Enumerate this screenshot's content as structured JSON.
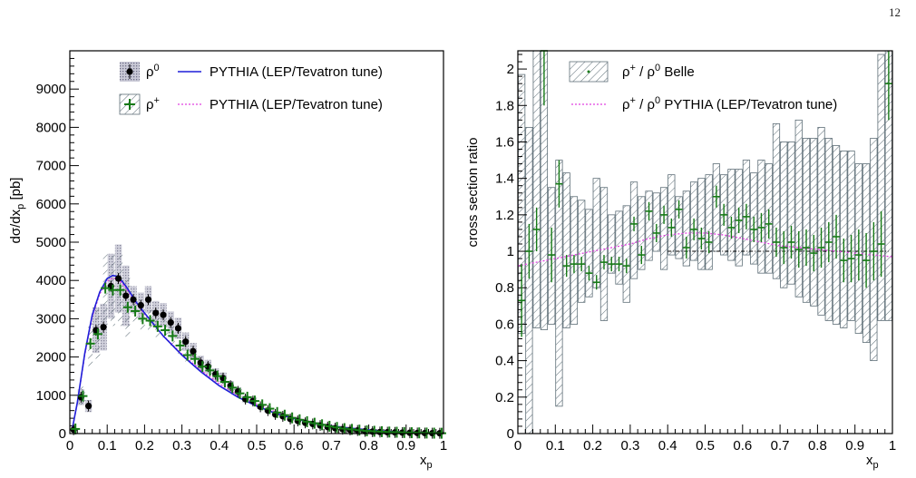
{
  "page": {
    "number": "12"
  },
  "colors": {
    "pythia_rho0": "#1f1fd8",
    "pythia_rhoplus": "#e040e0",
    "rhoplus": "#167a16",
    "rho0": "#000000",
    "band": "#8a8aa0",
    "hatch": "#5f6f78"
  },
  "chart_data": [
    {
      "type": "scatter",
      "title": "",
      "xlabel": "x",
      "xlabel_sub": "p",
      "ylabel": "dσ/dx",
      "ylabel_sub": "p",
      "ylabel_unit": " [pb]",
      "xlim": [
        0,
        1
      ],
      "ylim": [
        0,
        10000
      ],
      "xticks": [
        0,
        0.1,
        0.2,
        0.3,
        0.4,
        0.5,
        0.6,
        0.7,
        0.8,
        0.9,
        1
      ],
      "xtick_labels": [
        "0",
        "0.1",
        "0.2",
        "0.3",
        "0.4",
        "0.5",
        "0.6",
        "0.7",
        "0.8",
        "0.9",
        "1"
      ],
      "yticks": [
        0,
        1000,
        2000,
        3000,
        4000,
        5000,
        6000,
        7000,
        8000,
        9000
      ],
      "ytick_labels": [
        "0",
        "1000",
        "2000",
        "3000",
        "4000",
        "5000",
        "6000",
        "7000",
        "8000",
        "9000"
      ],
      "legend_position": "top",
      "legend": [
        {
          "key": "rho0_data",
          "label": "ρ",
          "sup": "0"
        },
        {
          "key": "rho0_pythia",
          "label": "PYTHIA (LEP/Tevatron tune)"
        },
        {
          "key": "rhoplus_data",
          "label": "ρ",
          "sup": "+"
        },
        {
          "key": "rhoplus_pythia",
          "label": "PYTHIA (LEP/Tevatron tune)"
        }
      ],
      "series": [
        {
          "key": "rho0_data",
          "x": [
            0.01,
            0.03,
            0.05,
            0.07,
            0.09,
            0.11,
            0.13,
            0.15,
            0.17,
            0.19,
            0.21,
            0.23,
            0.25,
            0.27,
            0.29,
            0.31,
            0.33,
            0.35,
            0.37,
            0.39,
            0.41,
            0.43,
            0.45,
            0.47,
            0.49,
            0.51,
            0.53,
            0.55,
            0.57,
            0.59,
            0.61,
            0.63,
            0.65,
            0.67,
            0.69,
            0.71,
            0.73,
            0.75,
            0.77,
            0.79,
            0.81,
            0.83,
            0.85,
            0.87,
            0.89,
            0.91,
            0.93,
            0.95,
            0.97,
            0.99
          ],
          "y": [
            100,
            950,
            720,
            2700,
            2780,
            3850,
            4050,
            3600,
            3500,
            3350,
            3500,
            3150,
            3100,
            2900,
            2750,
            2400,
            2150,
            1850,
            1750,
            1550,
            1450,
            1250,
            1100,
            900,
            850,
            700,
            600,
            500,
            450,
            380,
            330,
            280,
            250,
            210,
            170,
            140,
            115,
            95,
            80,
            60,
            50,
            40,
            35,
            30,
            25,
            20,
            15,
            12,
            10,
            8
          ]
        },
        {
          "key": "rhoplus_data",
          "x": [
            0.015,
            0.035,
            0.055,
            0.075,
            0.095,
            0.115,
            0.135,
            0.155,
            0.175,
            0.195,
            0.215,
            0.235,
            0.255,
            0.275,
            0.295,
            0.315,
            0.335,
            0.355,
            0.375,
            0.395,
            0.415,
            0.435,
            0.455,
            0.475,
            0.495,
            0.515,
            0.535,
            0.555,
            0.575,
            0.595,
            0.615,
            0.635,
            0.655,
            0.675,
            0.695,
            0.715,
            0.735,
            0.755,
            0.775,
            0.795,
            0.815,
            0.835,
            0.855,
            0.875,
            0.895,
            0.915,
            0.935,
            0.955,
            0.975,
            0.995
          ],
          "y": [
            120,
            980,
            2350,
            2600,
            3800,
            3750,
            3750,
            3300,
            3200,
            3000,
            2950,
            2800,
            2700,
            2550,
            2300,
            2050,
            1950,
            1750,
            1650,
            1500,
            1350,
            1200,
            1050,
            950,
            850,
            750,
            650,
            550,
            480,
            410,
            360,
            310,
            270,
            230,
            190,
            160,
            130,
            110,
            90,
            70,
            60,
            50,
            40,
            35,
            28,
            22,
            18,
            14,
            11,
            9
          ]
        },
        {
          "key": "rho0_pythia",
          "x": [
            0.005,
            0.02,
            0.04,
            0.06,
            0.08,
            0.1,
            0.115,
            0.13,
            0.15,
            0.18,
            0.2,
            0.25,
            0.3,
            0.35,
            0.4,
            0.45,
            0.5,
            0.55,
            0.6,
            0.65,
            0.7,
            0.75,
            0.8,
            0.85,
            0.9,
            0.95,
            0.99
          ],
          "y": [
            50,
            800,
            2100,
            3100,
            3700,
            4050,
            4130,
            4100,
            3850,
            3400,
            3150,
            2550,
            2050,
            1620,
            1250,
            950,
            720,
            530,
            390,
            280,
            200,
            140,
            95,
            60,
            35,
            20,
            10
          ]
        },
        {
          "key": "rhoplus_pythia",
          "x": [
            0.005,
            0.02,
            0.04,
            0.06,
            0.08,
            0.1,
            0.115,
            0.13,
            0.15,
            0.18,
            0.2,
            0.25,
            0.3,
            0.35,
            0.4,
            0.45,
            0.5,
            0.55,
            0.6,
            0.65,
            0.7,
            0.75,
            0.8,
            0.85,
            0.9,
            0.95,
            0.99
          ],
          "y": [
            45,
            780,
            2050,
            3050,
            3650,
            3980,
            4060,
            4030,
            3800,
            3380,
            3120,
            2560,
            2080,
            1660,
            1300,
            1000,
            760,
            570,
            420,
            300,
            215,
            150,
            100,
            65,
            38,
            22,
            11
          ]
        }
      ]
    },
    {
      "type": "scatter",
      "title": "",
      "xlabel": "x",
      "xlabel_sub": "p",
      "ylabel": "cross section ratio",
      "xlim": [
        0,
        1
      ],
      "ylim": [
        0,
        2.1
      ],
      "xticks": [
        0,
        0.1,
        0.2,
        0.3,
        0.4,
        0.5,
        0.6,
        0.7,
        0.8,
        0.9,
        1
      ],
      "xtick_labels": [
        "0",
        "0.1",
        "0.2",
        "0.3",
        "0.4",
        "0.5",
        "0.6",
        "0.7",
        "0.8",
        "0.9",
        "1"
      ],
      "yticks": [
        0,
        0.2,
        0.4,
        0.6,
        0.8,
        1,
        1.2,
        1.4,
        1.6,
        1.8,
        2
      ],
      "ytick_labels": [
        "0",
        "0.2",
        "0.4",
        "0.6",
        "0.8",
        "1",
        "1.2",
        "1.4",
        "1.6",
        "1.8",
        "2"
      ],
      "reference_line": 1,
      "legend_position": "top",
      "legend": [
        {
          "key": "ratio_data",
          "label": "ρ",
          "sup": "+",
          "label2": " / ρ",
          "sup2": "0",
          "label3": " Belle"
        },
        {
          "key": "ratio_pythia",
          "label": "ρ",
          "sup": "+",
          "label2": " / ρ",
          "sup2": "0",
          "label3": " PYTHIA (LEP/Tevatron tune)"
        }
      ],
      "series": [
        {
          "key": "ratio_data",
          "x": [
            0.01,
            0.03,
            0.05,
            0.07,
            0.09,
            0.11,
            0.13,
            0.15,
            0.17,
            0.19,
            0.21,
            0.23,
            0.25,
            0.27,
            0.29,
            0.31,
            0.33,
            0.35,
            0.37,
            0.39,
            0.41,
            0.43,
            0.45,
            0.47,
            0.49,
            0.51,
            0.53,
            0.55,
            0.57,
            0.59,
            0.61,
            0.63,
            0.65,
            0.67,
            0.69,
            0.71,
            0.73,
            0.75,
            0.77,
            0.79,
            0.81,
            0.83,
            0.85,
            0.87,
            0.89,
            0.91,
            0.93,
            0.95,
            0.97,
            0.99
          ],
          "y": [
            0.73,
            1.0,
            1.12,
            2.1,
            0.98,
            1.37,
            0.92,
            0.93,
            0.93,
            0.88,
            0.83,
            0.94,
            0.93,
            0.93,
            0.92,
            1.15,
            0.98,
            1.22,
            1.1,
            1.2,
            1.13,
            1.23,
            1.02,
            1.12,
            1.07,
            1.05,
            1.3,
            1.2,
            1.13,
            1.17,
            1.19,
            1.12,
            1.13,
            1.15,
            1.05,
            1.02,
            1.05,
            1.01,
            1.02,
            0.99,
            1.02,
            1.05,
            1.08,
            0.95,
            0.96,
            0.98,
            0.95,
            1.0,
            1.04,
            1.92
          ],
          "err": [
            0.2,
            0.15,
            0.12,
            0.3,
            0.15,
            0.13,
            0.06,
            0.05,
            0.04,
            0.04,
            0.04,
            0.04,
            0.04,
            0.04,
            0.04,
            0.04,
            0.05,
            0.05,
            0.05,
            0.05,
            0.05,
            0.05,
            0.06,
            0.06,
            0.06,
            0.06,
            0.06,
            0.06,
            0.06,
            0.07,
            0.07,
            0.07,
            0.08,
            0.08,
            0.08,
            0.09,
            0.09,
            0.1,
            0.1,
            0.1,
            0.11,
            0.11,
            0.12,
            0.12,
            0.13,
            0.14,
            0.15,
            0.16,
            0.18,
            0.2
          ],
          "band_low": [
            0.55,
            0.0,
            0.58,
            0.57,
            0.6,
            0.15,
            0.58,
            0.6,
            0.72,
            0.75,
            0.8,
            0.62,
            0.88,
            0.82,
            0.72,
            0.85,
            0.9,
            0.95,
            1.0,
            0.9,
            0.98,
            0.96,
            0.92,
            0.95,
            0.9,
            0.9,
            1.0,
            0.98,
            0.95,
            0.92,
            0.98,
            0.93,
            0.88,
            0.88,
            0.85,
            0.8,
            0.82,
            0.75,
            0.72,
            0.7,
            0.65,
            0.62,
            0.6,
            0.58,
            0.62,
            0.55,
            0.5,
            0.4,
            0.62,
            0.62
          ],
          "band_high": [
            1.97,
            1.68,
            2.1,
            2.1,
            1.35,
            1.5,
            1.43,
            1.3,
            1.28,
            1.23,
            1.4,
            1.35,
            1.2,
            1.22,
            1.25,
            1.38,
            1.3,
            1.33,
            1.32,
            1.35,
            1.42,
            1.3,
            1.33,
            1.38,
            1.4,
            1.42,
            1.48,
            1.42,
            1.45,
            1.45,
            1.5,
            1.43,
            1.5,
            1.48,
            1.7,
            1.6,
            1.6,
            1.72,
            1.62,
            1.62,
            1.68,
            1.62,
            1.58,
            1.55,
            1.55,
            1.48,
            1.48,
            1.62,
            2.08,
            2.1
          ]
        },
        {
          "key": "ratio_pythia",
          "x": [
            0.0,
            0.05,
            0.1,
            0.15,
            0.2,
            0.25,
            0.3,
            0.35,
            0.4,
            0.45,
            0.5,
            0.55,
            0.6,
            0.65,
            0.7,
            0.75,
            0.8,
            0.85,
            0.9,
            0.95,
            1.0
          ],
          "y": [
            0.92,
            0.94,
            0.96,
            0.98,
            1.0,
            1.02,
            1.04,
            1.07,
            1.09,
            1.1,
            1.1,
            1.09,
            1.07,
            1.05,
            1.03,
            1.02,
            1.01,
            1.0,
            0.99,
            0.98,
            0.97
          ]
        }
      ]
    }
  ]
}
